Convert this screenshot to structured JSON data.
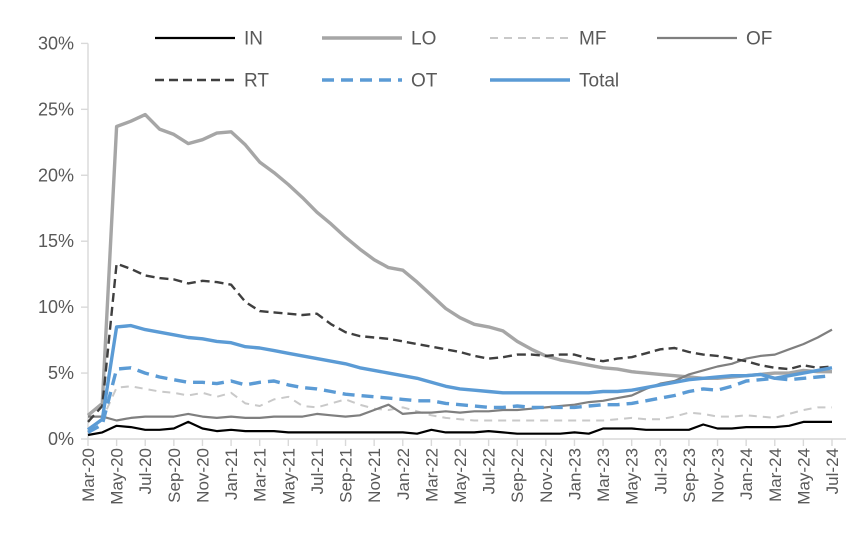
{
  "chart_data": {
    "type": "line",
    "title": "",
    "grid": false,
    "legend_position": "top",
    "ylim": [
      0,
      30
    ],
    "ytick_step": 5,
    "ytick_labels": [
      "0%",
      "5%",
      "10%",
      "15%",
      "20%",
      "25%",
      "30%"
    ],
    "x_tick_labels": [
      "Mar-20",
      "May-20",
      "Jul-20",
      "Sep-20",
      "Nov-20",
      "Jan-21",
      "Mar-21",
      "May-21",
      "Jul-21",
      "Sep-21",
      "Nov-21",
      "Jan-22",
      "Mar-22",
      "May-22",
      "Jul-22",
      "Sep-22",
      "Nov-22",
      "Jan-23",
      "Mar-23",
      "May-23",
      "Jul-23",
      "Sep-23",
      "Nov-23",
      "Jan-24",
      "Mar-24",
      "May-24",
      "Jul-24"
    ],
    "x_frequency": "monthly (ticks every 2 months)",
    "series": [
      {
        "name": "IN",
        "color": "#000000",
        "style": "solid",
        "width": 2.2,
        "values": [
          0.3,
          0.5,
          1.0,
          0.9,
          0.7,
          0.7,
          0.8,
          1.3,
          0.8,
          0.6,
          0.7,
          0.6,
          0.6,
          0.6,
          0.5,
          0.5,
          0.5,
          0.5,
          0.5,
          0.5,
          0.5,
          0.5,
          0.5,
          0.4,
          0.7,
          0.5,
          0.5,
          0.5,
          0.6,
          0.5,
          0.4,
          0.4,
          0.4,
          0.4,
          0.5,
          0.4,
          0.8,
          0.8,
          0.8,
          0.7,
          0.7,
          0.7,
          0.7,
          1.1,
          0.8,
          0.8,
          0.9,
          0.9,
          0.9,
          1.0,
          1.3,
          1.3,
          1.3
        ]
      },
      {
        "name": "LO",
        "color": "#A6A6A6",
        "style": "solid",
        "width": 3.4,
        "values": [
          1.8,
          2.7,
          23.7,
          24.1,
          24.6,
          23.5,
          23.1,
          22.4,
          22.7,
          23.2,
          23.3,
          22.3,
          21.0,
          20.2,
          19.3,
          18.3,
          17.2,
          16.3,
          15.3,
          14.4,
          13.6,
          13.0,
          12.8,
          11.9,
          10.9,
          9.9,
          9.2,
          8.7,
          8.5,
          8.2,
          7.4,
          6.8,
          6.3,
          6.0,
          5.8,
          5.6,
          5.4,
          5.3,
          5.1,
          5.0,
          4.9,
          4.8,
          4.7,
          4.6,
          4.6,
          4.7,
          4.8,
          4.9,
          5.0,
          5.0,
          5.2,
          5.1,
          5.1
        ]
      },
      {
        "name": "MF",
        "color": "#C9C9C9",
        "style": "dashed",
        "width": 2.0,
        "dash": "8 6",
        "values": [
          0.8,
          1.5,
          3.9,
          4.0,
          3.8,
          3.6,
          3.5,
          3.3,
          3.5,
          3.2,
          3.5,
          2.7,
          2.5,
          3.0,
          3.2,
          2.5,
          2.4,
          2.7,
          3.0,
          2.6,
          2.3,
          2.2,
          2.4,
          2.1,
          1.8,
          1.6,
          1.5,
          1.4,
          1.4,
          1.4,
          1.4,
          1.4,
          1.4,
          1.4,
          1.4,
          1.4,
          1.4,
          1.5,
          1.6,
          1.5,
          1.5,
          1.7,
          2.0,
          1.9,
          1.7,
          1.7,
          1.8,
          1.7,
          1.6,
          1.9,
          2.2,
          2.4,
          2.4
        ]
      },
      {
        "name": "OF",
        "color": "#7F7F7F",
        "style": "solid",
        "width": 2.2,
        "values": [
          1.7,
          1.7,
          1.4,
          1.6,
          1.7,
          1.7,
          1.7,
          1.9,
          1.7,
          1.6,
          1.7,
          1.6,
          1.6,
          1.7,
          1.7,
          1.7,
          1.9,
          1.8,
          1.7,
          1.8,
          2.2,
          2.6,
          1.9,
          2.0,
          2.0,
          2.1,
          2.0,
          2.1,
          2.1,
          2.2,
          2.2,
          2.3,
          2.4,
          2.5,
          2.6,
          2.8,
          2.9,
          3.1,
          3.3,
          3.8,
          4.2,
          4.4,
          4.9,
          5.2,
          5.5,
          5.7,
          6.1,
          6.3,
          6.4,
          6.8,
          7.2,
          7.7,
          8.3
        ]
      },
      {
        "name": "RT",
        "color": "#3F3F3F",
        "style": "dashed",
        "width": 2.4,
        "dash": "9 5",
        "values": [
          1.3,
          2.5,
          13.3,
          12.9,
          12.4,
          12.2,
          12.1,
          11.8,
          12.0,
          11.9,
          11.7,
          10.4,
          9.7,
          9.6,
          9.5,
          9.4,
          9.5,
          8.7,
          8.1,
          7.8,
          7.7,
          7.6,
          7.4,
          7.2,
          7.0,
          6.8,
          6.6,
          6.3,
          6.1,
          6.2,
          6.4,
          6.4,
          6.3,
          6.4,
          6.4,
          6.1,
          5.9,
          6.1,
          6.2,
          6.5,
          6.8,
          6.9,
          6.6,
          6.4,
          6.3,
          6.1,
          5.9,
          5.6,
          5.4,
          5.3,
          5.6,
          5.4,
          5.5
        ]
      },
      {
        "name": "OT",
        "color": "#5B9BD5",
        "style": "dashed",
        "width": 3.4,
        "dash": "12 7",
        "values": [
          0.5,
          1.1,
          5.3,
          5.4,
          5.0,
          4.7,
          4.5,
          4.3,
          4.3,
          4.2,
          4.4,
          4.1,
          4.3,
          4.4,
          4.1,
          3.9,
          3.8,
          3.6,
          3.4,
          3.3,
          3.2,
          3.1,
          3.0,
          2.9,
          2.9,
          2.7,
          2.6,
          2.5,
          2.4,
          2.4,
          2.5,
          2.4,
          2.4,
          2.4,
          2.4,
          2.5,
          2.6,
          2.6,
          2.7,
          2.9,
          3.1,
          3.3,
          3.6,
          3.8,
          3.7,
          4.0,
          4.4,
          4.5,
          4.6,
          4.5,
          4.6,
          4.7,
          4.8
        ]
      },
      {
        "name": "Total",
        "color": "#5B9BD5",
        "style": "solid",
        "width": 3.4,
        "values": [
          0.7,
          1.5,
          8.5,
          8.6,
          8.3,
          8.1,
          7.9,
          7.7,
          7.6,
          7.4,
          7.3,
          7.0,
          6.9,
          6.7,
          6.5,
          6.3,
          6.1,
          5.9,
          5.7,
          5.4,
          5.2,
          5.0,
          4.8,
          4.6,
          4.3,
          4.0,
          3.8,
          3.7,
          3.6,
          3.5,
          3.5,
          3.5,
          3.5,
          3.5,
          3.5,
          3.5,
          3.6,
          3.6,
          3.7,
          3.9,
          4.1,
          4.3,
          4.5,
          4.6,
          4.7,
          4.8,
          4.8,
          4.9,
          4.6,
          4.8,
          5.0,
          5.2,
          5.4
        ]
      }
    ],
    "legend_rows": [
      [
        "IN",
        "LO",
        "MF",
        "OF"
      ],
      [
        "RT",
        "OT",
        "Total"
      ]
    ]
  },
  "style": {
    "axis_line_color": "#D9D9D9",
    "axis_label_color": "#595959",
    "legend_label_color": "#595959"
  }
}
